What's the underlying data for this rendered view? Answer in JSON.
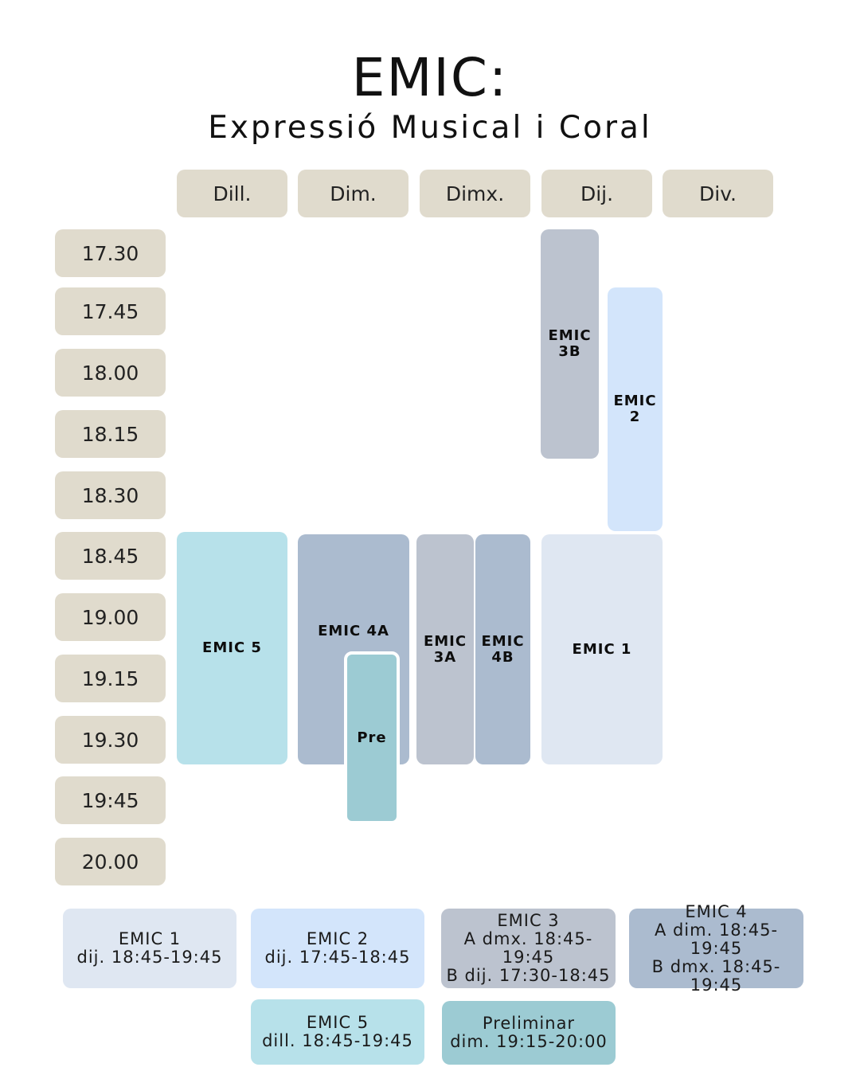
{
  "header": {
    "title": "EMIC:",
    "subtitle": "Expressió Musical i Coral"
  },
  "days": [
    "Dill.",
    "Dim.",
    "Dimx.",
    "Dij.",
    "Div."
  ],
  "times": [
    "17.30",
    "17.45",
    "18.00",
    "18.15",
    "18.30",
    "18.45",
    "19.00",
    "19.15",
    "19.30",
    "19:45",
    "20.00"
  ],
  "blocks": {
    "emic_3b": "EMIC\n3B",
    "emic_2": "EMIC\n2",
    "emic_5": "EMIC 5",
    "emic_4a": "EMIC 4A",
    "pre": "Pre",
    "emic_3a": "EMIC\n3A",
    "emic_4b": "EMIC\n4B",
    "emic_1": "EMIC 1"
  },
  "legend": {
    "emic1": [
      "EMIC 1",
      "dij. 18:45-19:45"
    ],
    "emic2": [
      "EMIC 2",
      "dij. 17:45-18:45"
    ],
    "emic3": [
      "EMIC 3",
      "A dmx. 18:45-19:45",
      "B dij. 17:30-18:45"
    ],
    "emic4": [
      "EMIC 4",
      "A dim. 18:45-19:45",
      "B dmx. 18:45-19:45"
    ],
    "emic5": [
      "EMIC 5",
      "dill. 18:45-19:45"
    ],
    "preliminar": [
      "Preliminar",
      "dim. 19:15-20:00"
    ]
  },
  "colors": {
    "pill": "#e0dbcd",
    "emic1": "#dfe7f2",
    "emic2": "#d3e5fb",
    "emic3": "#bcc3cf",
    "emic4": "#abbbcf",
    "emic5": "#b7e1ea",
    "preliminar": "#9ccbd3"
  }
}
